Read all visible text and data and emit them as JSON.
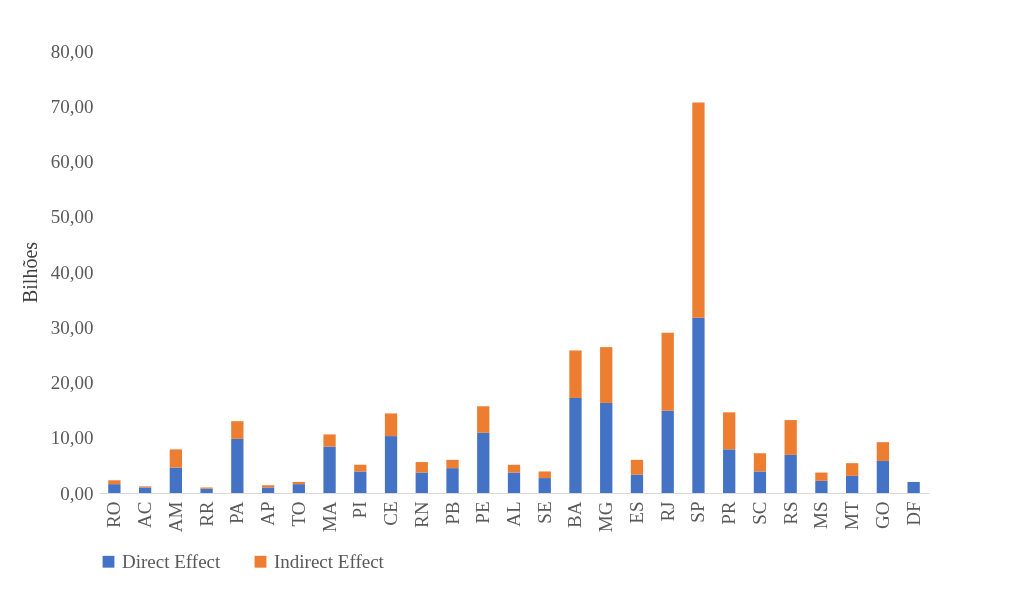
{
  "chart_data": {
    "type": "bar",
    "stacked": true,
    "ylabel": "Bilhões",
    "legend": "bottom",
    "grid": false,
    "categories": [
      "RO",
      "AC",
      "AM",
      "RR",
      "PA",
      "AP",
      "TO",
      "MA",
      "PI",
      "CE",
      "RN",
      "PB",
      "PE",
      "AL",
      "SE",
      "BA",
      "MG",
      "ES",
      "RJ",
      "SP",
      "PR",
      "SC",
      "RS",
      "MS",
      "MT",
      "GO",
      "DF"
    ],
    "series": [
      {
        "name": "Direct Effect",
        "color": "#4472c4",
        "values": [
          1.6,
          1.0,
          4.6,
          0.8,
          9.8,
          1.0,
          1.6,
          8.4,
          3.9,
          10.3,
          3.7,
          4.5,
          10.9,
          3.7,
          2.7,
          17.2,
          16.3,
          3.3,
          14.9,
          31.7,
          7.9,
          3.9,
          6.9,
          2.2,
          3.1,
          5.8,
          2.0
        ]
      },
      {
        "name": "Indirect Effect",
        "color": "#ed7d31",
        "values": [
          0.7,
          0.2,
          3.3,
          0.2,
          3.2,
          0.4,
          0.4,
          2.2,
          1.2,
          4.1,
          1.9,
          1.5,
          4.8,
          1.4,
          1.2,
          8.6,
          10.1,
          2.7,
          14.1,
          39.0,
          6.7,
          3.3,
          6.3,
          1.5,
          2.3,
          3.4,
          0
        ]
      }
    ],
    "ylim": [
      0,
      80
    ],
    "yticks": [
      {
        "value": 0,
        "label": "0,00"
      },
      {
        "value": 10,
        "label": "10,00"
      },
      {
        "value": 20,
        "label": "20,00"
      },
      {
        "value": 30,
        "label": "30,00"
      },
      {
        "value": 40,
        "label": "40,00"
      },
      {
        "value": 50,
        "label": "50,00"
      },
      {
        "value": 60,
        "label": "60,00"
      },
      {
        "value": 70,
        "label": "70,00"
      },
      {
        "value": 80,
        "label": "80,00"
      }
    ]
  }
}
